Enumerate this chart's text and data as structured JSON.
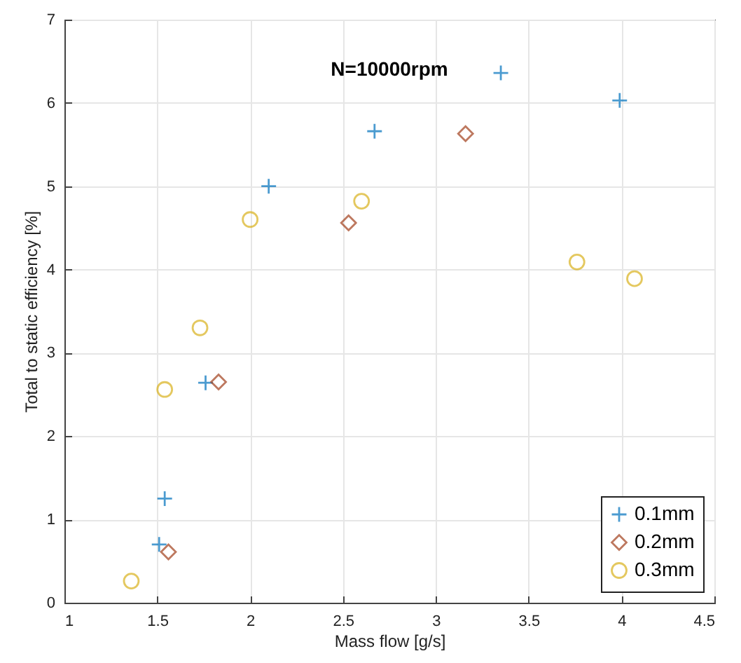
{
  "chart_data": {
    "type": "scatter",
    "title": "N=10000rpm",
    "xlabel": "Mass flow [g/s]",
    "ylabel": "Total to static efficiency [%]",
    "xlim": [
      1,
      4.5
    ],
    "xticks": [
      1,
      1.5,
      2,
      2.5,
      3,
      3.5,
      4,
      4.5
    ],
    "ylim": [
      0,
      7
    ],
    "yticks": [
      0,
      1,
      2,
      3,
      4,
      5,
      6,
      7
    ],
    "grid": true,
    "legend": "bottom right",
    "series": [
      {
        "name": "0.1mm",
        "color": "#0072bd",
        "marker": "cross",
        "x": [
          1.51,
          1.54,
          1.76,
          2.1,
          2.67,
          3.35,
          3.99
        ],
        "values": [
          0.7,
          1.25,
          2.64,
          5.0,
          5.66,
          6.36,
          6.03
        ]
      },
      {
        "name": "0.2mm",
        "color": "#a2401c",
        "marker": "diamond",
        "x": [
          1.56,
          1.83,
          2.53,
          3.16
        ],
        "values": [
          0.61,
          2.65,
          4.56,
          5.63
        ]
      },
      {
        "name": "0.3mm",
        "color": "#d9b11c",
        "marker": "circle",
        "x": [
          1.36,
          1.54,
          1.73,
          2.0,
          2.6,
          3.76,
          4.07
        ],
        "values": [
          0.26,
          2.56,
          3.3,
          4.6,
          4.82,
          4.09,
          3.89
        ]
      }
    ]
  }
}
